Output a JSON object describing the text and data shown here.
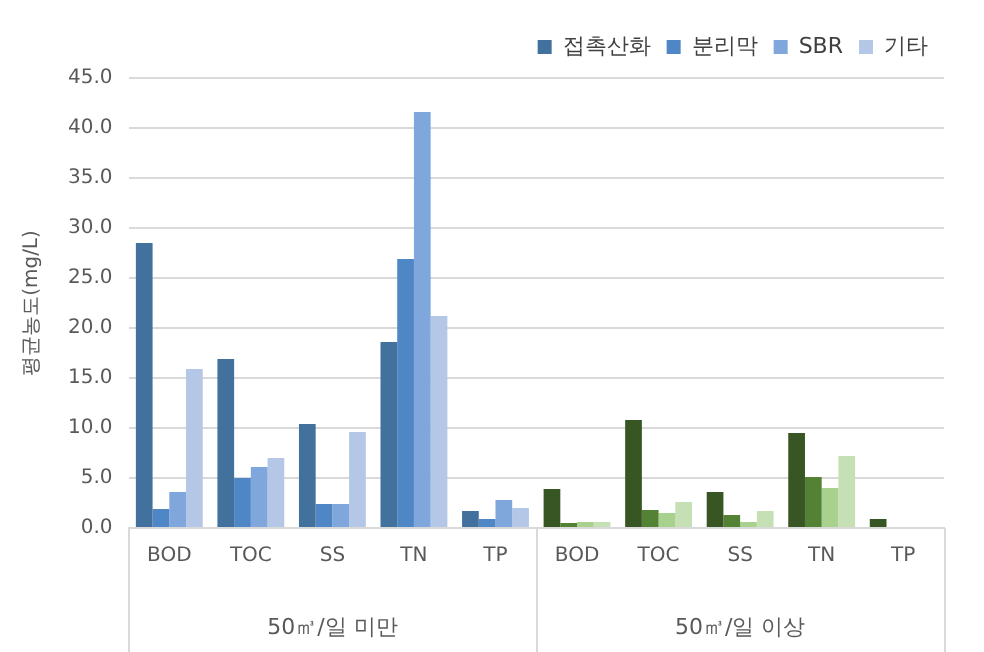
{
  "chart_data": {
    "type": "bar",
    "ylabel": "평균농도(mg/L)",
    "categories": [
      "BOD",
      "TOC",
      "SS",
      "TN",
      "TP",
      "BOD",
      "TOC",
      "SS",
      "TN",
      "TP"
    ],
    "series": [
      {
        "name": "접촉산화",
        "color": "#41719c",
        "colors": [
          "#41719c",
          "#41719c",
          "#41719c",
          "#41719c",
          "#41719c",
          "#375623",
          "#375623",
          "#375623",
          "#375623",
          "#375623"
        ],
        "values": [
          28.5,
          16.9,
          10.4,
          18.6,
          1.7,
          3.9,
          10.8,
          3.6,
          9.5,
          0.9
        ]
      },
      {
        "name": "분리막",
        "color": "#4f86c6",
        "colors": [
          "#4f86c6",
          "#4f86c6",
          "#4f86c6",
          "#4f86c6",
          "#4f86c6",
          "#548235",
          "#548235",
          "#548235",
          "#548235",
          "#548235"
        ],
        "values": [
          1.9,
          5.0,
          2.4,
          26.9,
          0.9,
          0.5,
          1.8,
          1.3,
          5.1,
          null
        ]
      },
      {
        "name": "SBR",
        "color": "#7fa7db",
        "colors": [
          "#7fa7db",
          "#7fa7db",
          "#7fa7db",
          "#7fa7db",
          "#7fa7db",
          "#a9d18e",
          "#a9d18e",
          "#a9d18e",
          "#a9d18e",
          "#a9d18e"
        ],
        "values": [
          3.6,
          6.1,
          2.4,
          41.6,
          2.8,
          0.6,
          1.5,
          0.6,
          4.0,
          null
        ]
      },
      {
        "name": "기타",
        "color": "#b4c7e7",
        "colors": [
          "#b4c7e7",
          "#b4c7e7",
          "#b4c7e7",
          "#b4c7e7",
          "#b4c7e7",
          "#c5e0b4",
          "#c5e0b4",
          "#c5e0b4",
          "#c5e0b4",
          "#c5e0b4"
        ],
        "values": [
          15.9,
          7.0,
          9.6,
          21.2,
          2.0,
          0.6,
          2.6,
          1.7,
          7.2,
          null
        ]
      }
    ],
    "ylim": [
      0,
      45
    ],
    "yticks": [
      {
        "value": 0,
        "label": "0.0"
      },
      {
        "value": 5,
        "label": "5.0"
      },
      {
        "value": 10,
        "label": "10.0"
      },
      {
        "value": 15,
        "label": "15.0"
      },
      {
        "value": 20,
        "label": "20.0"
      },
      {
        "value": 25,
        "label": "25.0"
      },
      {
        "value": 30,
        "label": "30.0"
      },
      {
        "value": 35,
        "label": "35.0"
      },
      {
        "value": 40,
        "label": "40.0"
      },
      {
        "value": 45,
        "label": "45.0"
      }
    ],
    "grid": "y",
    "legend": "top right",
    "annotations": [
      "50㎥/일 미만",
      "50㎥/일 이상"
    ]
  }
}
